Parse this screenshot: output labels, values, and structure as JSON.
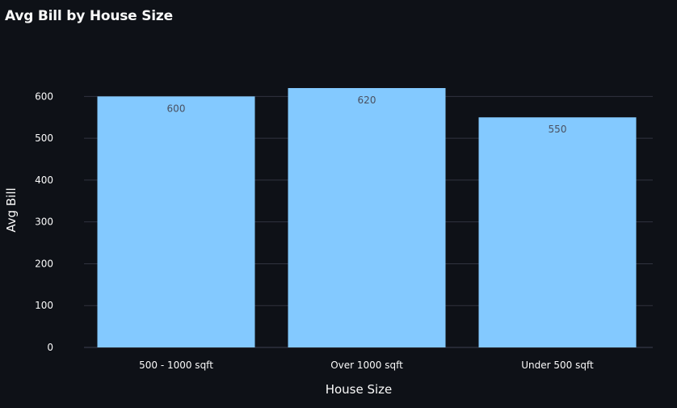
{
  "chart_data": {
    "type": "bar",
    "title": "Avg Bill by House Size",
    "xlabel": "House Size",
    "ylabel": "Avg Bill",
    "categories": [
      "500 - 1000 sqft",
      "Over 1000 sqft",
      "Under 500 sqft"
    ],
    "values": [
      600,
      620,
      550
    ],
    "data_labels": [
      "600",
      "620",
      "550"
    ],
    "ylim": [
      0,
      620
    ],
    "yticks": [
      0,
      100,
      200,
      300,
      400,
      500,
      600
    ],
    "grid": true,
    "legend": "none",
    "colors": {
      "bar": "#83c9ff",
      "background": "#0e1117",
      "grid": "#31333f",
      "text": "#fafafa",
      "data_label": "#4a5060"
    }
  }
}
